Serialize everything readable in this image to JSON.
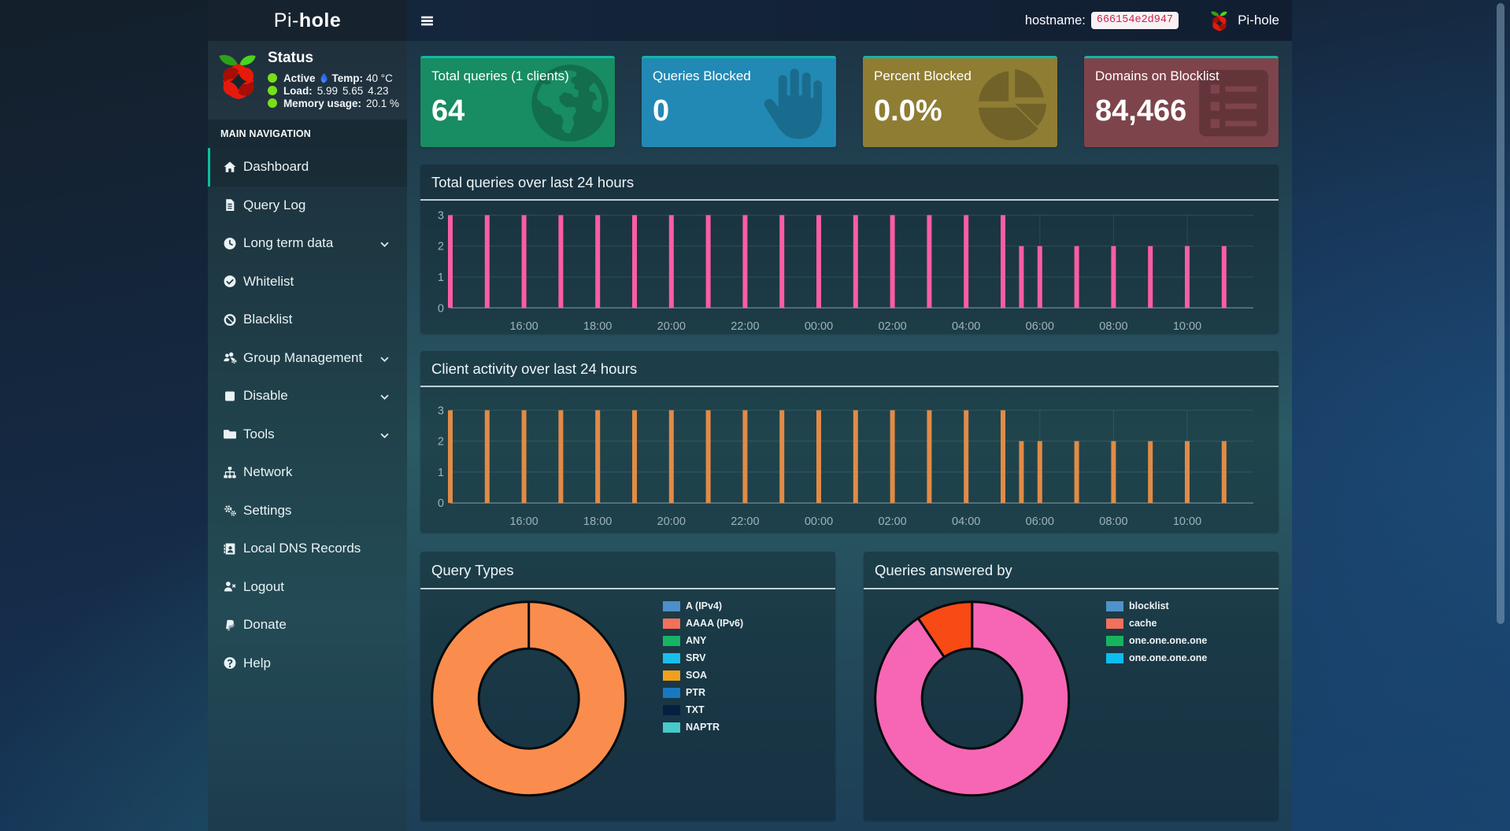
{
  "app": {
    "brand_prefix": "Pi-",
    "brand_suffix": "hole"
  },
  "topbar": {
    "hostname_label": "hostname:",
    "hostname_value": "666154e2d947",
    "brand": "Pi-hole"
  },
  "sidebar": {
    "status": {
      "title": "Status",
      "active_label": "Active",
      "temp_label": "Temp:",
      "temp_value": "40 °C",
      "load_label": "Load:",
      "load_1": "5.99",
      "load_2": "5.65",
      "load_3": "4.23",
      "memory_label": "Memory usage:",
      "memory_value": "20.1 %"
    },
    "nav_header": "MAIN NAVIGATION",
    "items": [
      {
        "label": "Dashboard",
        "icon": "home-icon",
        "active": true,
        "chevron": false
      },
      {
        "label": "Query Log",
        "icon": "file-icon",
        "active": false,
        "chevron": false
      },
      {
        "label": "Long term data",
        "icon": "clock-icon",
        "active": false,
        "chevron": true
      },
      {
        "label": "Whitelist",
        "icon": "check-circle-icon",
        "active": false,
        "chevron": false
      },
      {
        "label": "Blacklist",
        "icon": "ban-icon",
        "active": false,
        "chevron": false
      },
      {
        "label": "Group Management",
        "icon": "users-gear-icon",
        "active": false,
        "chevron": true
      },
      {
        "label": "Disable",
        "icon": "stop-icon",
        "active": false,
        "chevron": true
      },
      {
        "label": "Tools",
        "icon": "folder-icon",
        "active": false,
        "chevron": true
      },
      {
        "label": "Network",
        "icon": "sitemap-icon",
        "active": false,
        "chevron": false
      },
      {
        "label": "Settings",
        "icon": "gears-icon",
        "active": false,
        "chevron": false
      },
      {
        "label": "Local DNS Records",
        "icon": "address-book-icon",
        "active": false,
        "chevron": false
      },
      {
        "label": "Logout",
        "icon": "user-x-icon",
        "active": false,
        "chevron": false
      },
      {
        "label": "Donate",
        "icon": "paypal-icon",
        "active": false,
        "chevron": false
      },
      {
        "label": "Help",
        "icon": "question-circle-icon",
        "active": false,
        "chevron": false
      }
    ]
  },
  "cards": [
    {
      "title": "Total queries (1 clients)",
      "value": "64",
      "color": "#188c62",
      "accent": "#12b7a6",
      "icon": "globe-icon"
    },
    {
      "title": "Queries Blocked",
      "value": "0",
      "color": "#2289b4",
      "accent": "#12b7a6",
      "icon": "hand-icon"
    },
    {
      "title": "Percent Blocked",
      "value": "0.0%",
      "color": "#8f7d33",
      "accent": "#12b7a6",
      "icon": "pie-chart-icon"
    },
    {
      "title": "Domains on Blocklist",
      "value": "84,466",
      "color": "#7e444b",
      "accent": "#12b7a6",
      "icon": "list-icon"
    }
  ],
  "chart_data": [
    {
      "id": "total_queries_over_time",
      "type": "bar",
      "title": "Total queries over last 24 hours",
      "color": "#fb5da4",
      "ylim": [
        0,
        3
      ],
      "yticks": [
        "0",
        "1",
        "2",
        "3"
      ],
      "xticks": [
        "16:00",
        "18:00",
        "20:00",
        "22:00",
        "00:00",
        "02:00",
        "04:00",
        "06:00",
        "08:00",
        "10:00"
      ],
      "bars": [
        {
          "time": "14:00",
          "value": 3
        },
        {
          "time": "15:00",
          "value": 3
        },
        {
          "time": "16:00",
          "value": 3
        },
        {
          "time": "17:00",
          "value": 3
        },
        {
          "time": "18:00",
          "value": 3
        },
        {
          "time": "19:00",
          "value": 3
        },
        {
          "time": "20:00",
          "value": 3
        },
        {
          "time": "21:00",
          "value": 3
        },
        {
          "time": "22:00",
          "value": 3
        },
        {
          "time": "23:00",
          "value": 3
        },
        {
          "time": "00:00",
          "value": 3
        },
        {
          "time": "01:00",
          "value": 3
        },
        {
          "time": "02:00",
          "value": 3
        },
        {
          "time": "03:00",
          "value": 3
        },
        {
          "time": "04:00",
          "value": 3
        },
        {
          "time": "05:00",
          "value": 3
        },
        {
          "time": "05:30",
          "value": 2
        },
        {
          "time": "06:00",
          "value": 2
        },
        {
          "time": "07:00",
          "value": 2
        },
        {
          "time": "08:00",
          "value": 2
        },
        {
          "time": "09:00",
          "value": 2
        },
        {
          "time": "10:00",
          "value": 2
        },
        {
          "time": "11:00",
          "value": 2
        }
      ]
    },
    {
      "id": "client_activity_over_time",
      "type": "bar",
      "title": "Client activity over last 24 hours",
      "color": "#e18b47",
      "ylim": [
        0,
        3
      ],
      "yticks": [
        "0",
        "1",
        "2",
        "3"
      ],
      "xticks": [
        "16:00",
        "18:00",
        "20:00",
        "22:00",
        "00:00",
        "02:00",
        "04:00",
        "06:00",
        "08:00",
        "10:00"
      ],
      "bars": [
        {
          "time": "14:00",
          "value": 3
        },
        {
          "time": "15:00",
          "value": 3
        },
        {
          "time": "16:00",
          "value": 3
        },
        {
          "time": "17:00",
          "value": 3
        },
        {
          "time": "18:00",
          "value": 3
        },
        {
          "time": "19:00",
          "value": 3
        },
        {
          "time": "20:00",
          "value": 3
        },
        {
          "time": "21:00",
          "value": 3
        },
        {
          "time": "22:00",
          "value": 3
        },
        {
          "time": "23:00",
          "value": 3
        },
        {
          "time": "00:00",
          "value": 3
        },
        {
          "time": "01:00",
          "value": 3
        },
        {
          "time": "02:00",
          "value": 3
        },
        {
          "time": "03:00",
          "value": 3
        },
        {
          "time": "04:00",
          "value": 3
        },
        {
          "time": "05:00",
          "value": 3
        },
        {
          "time": "05:30",
          "value": 2
        },
        {
          "time": "06:00",
          "value": 2
        },
        {
          "time": "07:00",
          "value": 2
        },
        {
          "time": "08:00",
          "value": 2
        },
        {
          "time": "09:00",
          "value": 2
        },
        {
          "time": "10:00",
          "value": 2
        },
        {
          "time": "11:00",
          "value": 2
        }
      ]
    },
    {
      "id": "query_types",
      "type": "doughnut",
      "title": "Query Types",
      "slices": [
        {
          "value_pct": 100,
          "color": "#fa8d4d"
        }
      ],
      "legend": [
        {
          "label": "A (IPv4)",
          "color": "#4e8fc9"
        },
        {
          "label": "AAAA (IPv6)",
          "color": "#f4705c"
        },
        {
          "label": "ANY",
          "color": "#17b465"
        },
        {
          "label": "SRV",
          "color": "#19bfea"
        },
        {
          "label": "SOA",
          "color": "#f0a11c"
        },
        {
          "label": "PTR",
          "color": "#1878c0"
        },
        {
          "label": "TXT",
          "color": "#071f40"
        },
        {
          "label": "NAPTR",
          "color": "#45cbc8"
        }
      ]
    },
    {
      "id": "queries_answered_by",
      "type": "doughnut",
      "title": "Queries answered by",
      "slices": [
        {
          "value_pct": 90.6,
          "color": "#f666b5"
        },
        {
          "value_pct": 9.4,
          "color": "#f84a15"
        }
      ],
      "legend": [
        {
          "label": "blocklist",
          "color": "#4e93c8"
        },
        {
          "label": "cache",
          "color": "#f4705c"
        },
        {
          "label": "one.one.one.one",
          "color": "#15b55f"
        },
        {
          "label": "one.one.one.one",
          "color": "#0cbef0"
        }
      ]
    }
  ]
}
